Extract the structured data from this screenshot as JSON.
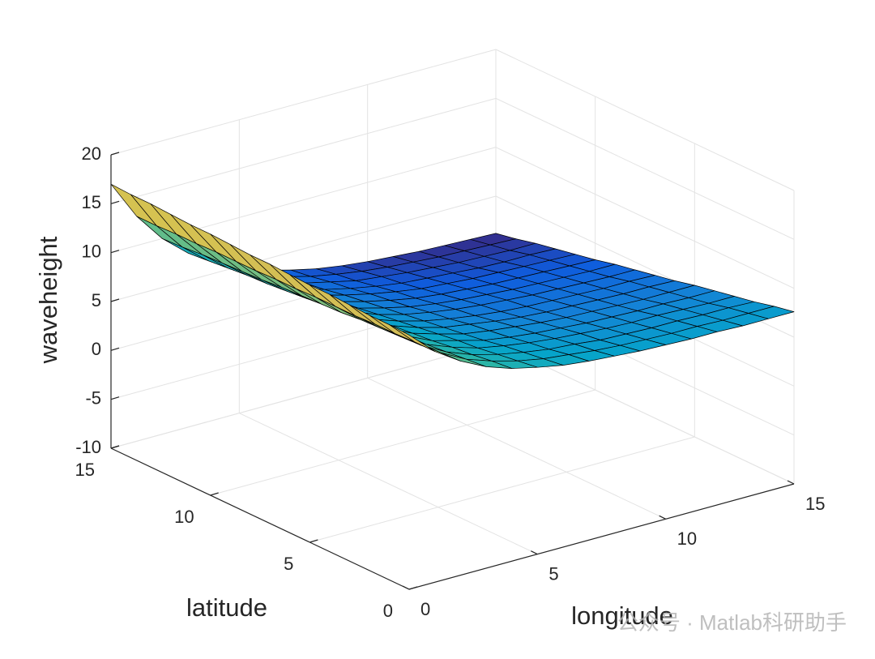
{
  "chart_data": {
    "type": "surface",
    "xlabel": "longitude",
    "ylabel": "latitude",
    "zlabel": "waveheight",
    "x": [
      0,
      1,
      2,
      3,
      4,
      5,
      6,
      7,
      8,
      9,
      10,
      11,
      12,
      13,
      14,
      15
    ],
    "y": [
      0,
      1,
      2,
      3,
      4,
      5,
      6,
      7,
      8,
      9,
      10,
      11,
      12,
      13,
      14,
      15
    ],
    "z": [
      [
        16.0,
        13.6,
        11.9,
        10.6,
        9.7,
        9.1,
        8.6,
        8.3,
        8.1,
        7.9,
        7.8,
        7.7,
        7.7,
        7.6,
        7.6,
        7.6
      ],
      [
        16.1,
        13.6,
        11.8,
        10.4,
        9.5,
        8.8,
        8.3,
        8.0,
        7.7,
        7.5,
        7.4,
        7.3,
        7.3,
        7.2,
        7.2,
        7.2
      ],
      [
        16.1,
        13.5,
        11.6,
        10.2,
        9.2,
        8.5,
        8.0,
        7.6,
        7.4,
        7.1,
        7.0,
        6.9,
        6.9,
        6.8,
        6.8,
        6.7
      ],
      [
        16.2,
        13.5,
        11.5,
        10.0,
        9.0,
        8.2,
        7.7,
        7.3,
        7.0,
        6.8,
        6.6,
        6.5,
        6.5,
        6.4,
        6.3,
        6.3
      ],
      [
        16.3,
        13.4,
        11.4,
        9.9,
        8.7,
        8.0,
        7.3,
        6.9,
        6.6,
        6.4,
        6.2,
        6.1,
        6.0,
        6.0,
        5.9,
        5.9
      ],
      [
        16.3,
        13.4,
        11.3,
        9.7,
        8.5,
        7.7,
        7.0,
        6.6,
        6.3,
        6.0,
        5.8,
        5.7,
        5.6,
        5.5,
        5.5,
        5.5
      ],
      [
        16.4,
        13.4,
        11.1,
        9.5,
        8.3,
        7.4,
        6.7,
        6.3,
        5.9,
        5.6,
        5.4,
        5.3,
        5.2,
        5.1,
        5.1,
        5.0
      ],
      [
        16.5,
        13.3,
        11.0,
        9.3,
        8.0,
        7.1,
        6.4,
        5.9,
        5.5,
        5.2,
        5.0,
        4.9,
        4.8,
        4.7,
        4.7,
        4.6
      ],
      [
        16.5,
        13.3,
        10.9,
        9.1,
        7.8,
        6.8,
        6.1,
        5.6,
        5.2,
        4.9,
        4.7,
        4.5,
        4.4,
        4.3,
        4.2,
        4.2
      ],
      [
        16.6,
        13.2,
        10.8,
        8.9,
        7.5,
        6.5,
        5.8,
        5.2,
        4.8,
        4.5,
        4.3,
        4.1,
        4.0,
        3.9,
        3.8,
        3.8
      ],
      [
        16.7,
        13.2,
        10.6,
        8.7,
        7.3,
        6.2,
        5.5,
        4.9,
        4.4,
        4.1,
        3.9,
        3.7,
        3.6,
        3.5,
        3.4,
        3.3
      ],
      [
        16.7,
        13.2,
        10.5,
        8.5,
        7.1,
        5.9,
        5.2,
        4.6,
        4.1,
        3.7,
        3.5,
        3.3,
        3.2,
        3.1,
        3.0,
        2.9
      ],
      [
        16.8,
        13.1,
        10.4,
        8.4,
        6.8,
        5.7,
        4.8,
        4.2,
        3.7,
        3.3,
        3.1,
        2.9,
        2.7,
        2.6,
        2.6,
        2.5
      ],
      [
        16.9,
        13.1,
        10.3,
        8.2,
        6.6,
        5.4,
        4.5,
        3.9,
        3.3,
        3.0,
        2.7,
        2.5,
        2.3,
        2.2,
        2.1,
        2.1
      ],
      [
        16.9,
        13.0,
        10.1,
        8.0,
        6.3,
        5.1,
        4.2,
        3.5,
        3.0,
        2.6,
        2.3,
        2.1,
        1.9,
        1.8,
        1.7,
        1.6
      ],
      [
        17.0,
        13.0,
        10.0,
        7.8,
        6.1,
        4.8,
        3.9,
        3.2,
        2.6,
        2.2,
        1.9,
        1.7,
        1.5,
        1.4,
        1.3,
        1.2
      ]
    ],
    "xlim": [
      0,
      15
    ],
    "ylim": [
      0,
      15
    ],
    "zlim": [
      -10,
      20
    ],
    "xticks": [
      0,
      5,
      10,
      15
    ],
    "yticks": [
      0,
      5,
      10,
      15
    ],
    "zticks": [
      -10,
      -5,
      0,
      5,
      10,
      15,
      20
    ],
    "grid": true,
    "edge_color": "#000000",
    "colormap": [
      "#352a87",
      "#0f5cdd",
      "#1481d6",
      "#06a4ca",
      "#2eb7a4",
      "#87bf77",
      "#d1bb59",
      "#f9fb0e"
    ]
  },
  "watermark": "公众号 · Matlab科研助手"
}
